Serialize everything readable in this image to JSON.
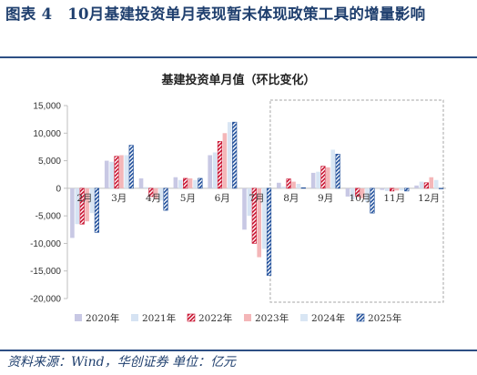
{
  "figure": {
    "number_title": "图表 4　10月基建投资单月表现暂未体现政策工具的增量影响",
    "source_label": "资料来源：",
    "source_text": "Wind，华创证券",
    "unit_label": "单位：",
    "unit_text": "亿元"
  },
  "colors": {
    "header_blue": "#1f3f6e",
    "rule_blue": "#2d4f84",
    "highlight_box": "#a6a6a6"
  },
  "chart_data": {
    "type": "bar",
    "title": "基建投资单月值（环比变化）",
    "categories": [
      "2月",
      "3月",
      "4月",
      "5月",
      "6月",
      "7月",
      "8月",
      "9月",
      "10月",
      "11月",
      "12月"
    ],
    "yticks": [
      "15,000",
      "10,000",
      "5,000",
      "0",
      "-5,000",
      "-10,000",
      "-15,000",
      "-20,000"
    ],
    "ylim": [
      -20000,
      15000
    ],
    "grid": false,
    "legend_position": "bottom",
    "highlight_categories": [
      "8月",
      "9月",
      "10月",
      "11月",
      "12月"
    ],
    "series": [
      {
        "name": "2020年",
        "color": "#c8c8e4",
        "pattern": "solid",
        "values": [
          -9000,
          5000,
          1800,
          2000,
          6000,
          -7500,
          1000,
          2800,
          -1500,
          -300,
          500
        ]
      },
      {
        "name": "2021年",
        "color": "#d6e3f3",
        "pattern": "solid",
        "values": [
          -6500,
          4800,
          200,
          1500,
          6500,
          -5000,
          300,
          3000,
          -2000,
          -500,
          1200
        ]
      },
      {
        "name": "2022年",
        "color": "#c8102e",
        "pattern": "diagonal",
        "values": [
          -6500,
          5800,
          -1500,
          1800,
          8500,
          -10000,
          1700,
          4000,
          -1500,
          -500,
          1000
        ]
      },
      {
        "name": "2023年",
        "color": "#f4b6b8",
        "pattern": "solid",
        "values": [
          -6000,
          6000,
          -2000,
          1800,
          10000,
          -12500,
          1200,
          3800,
          -1800,
          -400,
          2000
        ]
      },
      {
        "name": "2024年",
        "color": "#d9e6f4",
        "pattern": "solid",
        "values": [
          -4500,
          6000,
          -2200,
          1500,
          12000,
          -11000,
          800,
          7000,
          -2500,
          -400,
          1500
        ]
      },
      {
        "name": "2025年",
        "color": "#1f4e9a",
        "pattern": "diagonal",
        "values": [
          -8000,
          7800,
          -4000,
          1800,
          12000,
          -15800,
          100,
          6200,
          -4500,
          -500,
          0
        ]
      }
    ]
  }
}
